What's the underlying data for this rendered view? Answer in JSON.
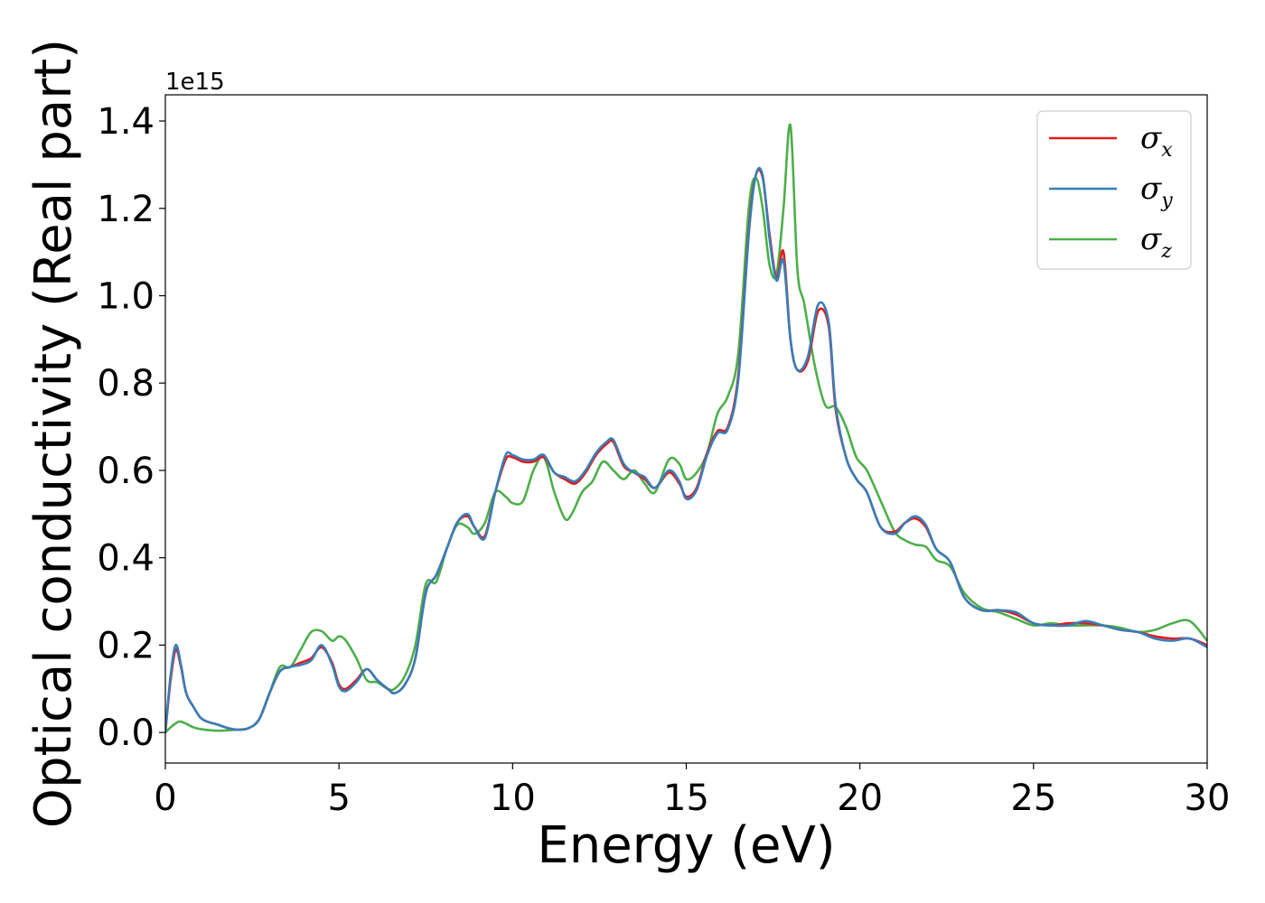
{
  "chart_data": {
    "type": "line",
    "title": "",
    "xlabel": "Energy (eV)",
    "ylabel": "Optical conductivity (Real part)",
    "y_offset_label": "1e15",
    "xlim": [
      0,
      30
    ],
    "ylim": [
      -0.07,
      1.46
    ],
    "x_ticks": [
      0,
      5,
      10,
      15,
      20,
      25,
      30
    ],
    "x_tick_labels": [
      "0",
      "5",
      "10",
      "15",
      "20",
      "25",
      "30"
    ],
    "y_ticks": [
      0.0,
      0.2,
      0.4,
      0.6,
      0.8,
      1.0,
      1.2,
      1.4
    ],
    "y_tick_labels": [
      "0.0",
      "0.2",
      "0.4",
      "0.6",
      "0.8",
      "1.0",
      "1.2",
      "1.4"
    ],
    "grid": false,
    "legend_position": "top-right",
    "series": [
      {
        "name": "σx",
        "symbol": "σ",
        "subscript": "x",
        "color": "#e41a1c",
        "x": [
          0,
          0.15,
          0.3,
          0.45,
          0.6,
          0.8,
          1.0,
          1.2,
          1.5,
          1.8,
          2.1,
          2.4,
          2.7,
          3.0,
          3.3,
          3.6,
          3.9,
          4.2,
          4.5,
          4.8,
          5.0,
          5.2,
          5.5,
          5.8,
          6.1,
          6.4,
          6.6,
          6.9,
          7.2,
          7.5,
          7.8,
          8.1,
          8.4,
          8.7,
          8.9,
          9.2,
          9.5,
          9.8,
          10.0,
          10.3,
          10.6,
          10.9,
          11.2,
          11.5,
          11.8,
          12.1,
          12.4,
          12.7,
          12.9,
          13.2,
          13.5,
          13.8,
          14.1,
          14.5,
          14.8,
          15.0,
          15.3,
          15.6,
          15.9,
          16.2,
          16.5,
          16.8,
          17.0,
          17.2,
          17.4,
          17.6,
          17.8,
          18.0,
          18.2,
          18.5,
          18.8,
          19.1,
          19.3,
          19.6,
          19.9,
          20.2,
          20.6,
          21.0,
          21.3,
          21.6,
          21.9,
          22.2,
          22.6,
          23.0,
          23.5,
          24.0,
          24.5,
          25.0,
          25.5,
          26.0,
          26.5,
          27.0,
          27.5,
          28.0,
          28.5,
          29.0,
          29.5,
          30.0
        ],
        "y": [
          0,
          0.12,
          0.19,
          0.15,
          0.09,
          0.06,
          0.035,
          0.025,
          0.018,
          0.01,
          0.006,
          0.01,
          0.03,
          0.09,
          0.14,
          0.15,
          0.16,
          0.17,
          0.195,
          0.16,
          0.11,
          0.1,
          0.12,
          0.145,
          0.12,
          0.1,
          0.09,
          0.11,
          0.17,
          0.32,
          0.36,
          0.42,
          0.48,
          0.495,
          0.47,
          0.45,
          0.55,
          0.625,
          0.63,
          0.62,
          0.62,
          0.63,
          0.595,
          0.58,
          0.57,
          0.595,
          0.635,
          0.66,
          0.665,
          0.61,
          0.595,
          0.58,
          0.56,
          0.595,
          0.57,
          0.54,
          0.56,
          0.64,
          0.69,
          0.7,
          0.82,
          1.15,
          1.275,
          1.27,
          1.14,
          1.04,
          1.1,
          0.9,
          0.83,
          0.85,
          0.965,
          0.93,
          0.74,
          0.63,
          0.58,
          0.55,
          0.47,
          0.46,
          0.48,
          0.49,
          0.47,
          0.42,
          0.39,
          0.31,
          0.28,
          0.28,
          0.27,
          0.25,
          0.245,
          0.25,
          0.25,
          0.245,
          0.235,
          0.23,
          0.22,
          0.215,
          0.215,
          0.2
        ]
      },
      {
        "name": "σy",
        "symbol": "σ",
        "subscript": "y",
        "color": "#377eb8",
        "x": [
          0,
          0.15,
          0.3,
          0.45,
          0.6,
          0.8,
          1.0,
          1.2,
          1.5,
          1.8,
          2.1,
          2.4,
          2.7,
          3.0,
          3.3,
          3.6,
          3.9,
          4.2,
          4.5,
          4.8,
          5.0,
          5.2,
          5.5,
          5.8,
          6.1,
          6.4,
          6.6,
          6.9,
          7.2,
          7.5,
          7.8,
          8.1,
          8.4,
          8.7,
          8.9,
          9.2,
          9.5,
          9.8,
          10.0,
          10.3,
          10.6,
          10.9,
          11.2,
          11.5,
          11.8,
          12.1,
          12.4,
          12.7,
          12.9,
          13.2,
          13.5,
          13.8,
          14.1,
          14.5,
          14.8,
          15.0,
          15.3,
          15.6,
          15.9,
          16.2,
          16.5,
          16.8,
          17.0,
          17.2,
          17.4,
          17.6,
          17.8,
          18.0,
          18.2,
          18.5,
          18.8,
          19.1,
          19.3,
          19.6,
          19.9,
          20.2,
          20.6,
          21.0,
          21.3,
          21.6,
          21.9,
          22.2,
          22.6,
          23.0,
          23.5,
          24.0,
          24.5,
          25.0,
          25.5,
          26.0,
          26.5,
          27.0,
          27.5,
          28.0,
          28.5,
          29.0,
          29.5,
          30.0
        ],
        "y": [
          0,
          0.13,
          0.2,
          0.155,
          0.09,
          0.06,
          0.035,
          0.025,
          0.018,
          0.01,
          0.006,
          0.01,
          0.03,
          0.09,
          0.14,
          0.15,
          0.155,
          0.165,
          0.2,
          0.155,
          0.105,
          0.095,
          0.115,
          0.145,
          0.12,
          0.1,
          0.09,
          0.11,
          0.17,
          0.32,
          0.36,
          0.42,
          0.48,
          0.5,
          0.47,
          0.445,
          0.55,
          0.635,
          0.635,
          0.625,
          0.625,
          0.635,
          0.595,
          0.585,
          0.575,
          0.6,
          0.64,
          0.665,
          0.67,
          0.615,
          0.595,
          0.585,
          0.56,
          0.6,
          0.575,
          0.535,
          0.555,
          0.635,
          0.685,
          0.695,
          0.81,
          1.14,
          1.275,
          1.275,
          1.13,
          1.035,
          1.08,
          0.9,
          0.83,
          0.86,
          0.98,
          0.94,
          0.75,
          0.63,
          0.58,
          0.55,
          0.47,
          0.455,
          0.48,
          0.495,
          0.475,
          0.42,
          0.39,
          0.31,
          0.28,
          0.28,
          0.275,
          0.25,
          0.245,
          0.245,
          0.255,
          0.245,
          0.235,
          0.23,
          0.215,
          0.21,
          0.215,
          0.195
        ]
      },
      {
        "name": "σz",
        "symbol": "σ",
        "subscript": "z",
        "color": "#4daf4a",
        "x": [
          0,
          0.2,
          0.4,
          0.6,
          0.8,
          1.0,
          1.3,
          1.6,
          2.0,
          2.4,
          2.7,
          3.0,
          3.3,
          3.6,
          3.9,
          4.2,
          4.5,
          4.8,
          5.0,
          5.2,
          5.5,
          5.8,
          6.1,
          6.4,
          6.6,
          6.9,
          7.2,
          7.5,
          7.8,
          8.1,
          8.4,
          8.7,
          8.9,
          9.2,
          9.5,
          9.8,
          10.0,
          10.3,
          10.6,
          10.9,
          11.2,
          11.5,
          11.7,
          12.0,
          12.3,
          12.6,
          12.9,
          13.2,
          13.5,
          13.8,
          14.1,
          14.5,
          14.8,
          15.0,
          15.3,
          15.6,
          15.9,
          16.2,
          16.5,
          16.8,
          17.0,
          17.2,
          17.4,
          17.6,
          17.8,
          18.0,
          18.2,
          18.4,
          18.7,
          19.0,
          19.3,
          19.6,
          19.9,
          20.2,
          20.6,
          21.0,
          21.3,
          21.6,
          21.9,
          22.2,
          22.6,
          23.0,
          23.5,
          24.0,
          24.5,
          25.0,
          25.5,
          26.0,
          26.5,
          27.0,
          27.5,
          28.0,
          28.5,
          29.0,
          29.5,
          30.0
        ],
        "y": [
          0,
          0.015,
          0.025,
          0.02,
          0.012,
          0.008,
          0.005,
          0.004,
          0.006,
          0.01,
          0.03,
          0.09,
          0.15,
          0.15,
          0.19,
          0.23,
          0.232,
          0.21,
          0.22,
          0.21,
          0.17,
          0.12,
          0.115,
          0.1,
          0.1,
          0.13,
          0.2,
          0.34,
          0.345,
          0.42,
          0.475,
          0.47,
          0.455,
          0.48,
          0.55,
          0.54,
          0.525,
          0.53,
          0.6,
          0.63,
          0.55,
          0.49,
          0.5,
          0.55,
          0.575,
          0.62,
          0.6,
          0.58,
          0.6,
          0.57,
          0.55,
          0.625,
          0.615,
          0.58,
          0.595,
          0.64,
          0.73,
          0.77,
          0.87,
          1.2,
          1.27,
          1.2,
          1.07,
          1.05,
          1.2,
          1.39,
          1.06,
          0.98,
          0.84,
          0.75,
          0.745,
          0.7,
          0.63,
          0.6,
          0.53,
          0.46,
          0.44,
          0.43,
          0.425,
          0.395,
          0.38,
          0.32,
          0.285,
          0.275,
          0.26,
          0.245,
          0.25,
          0.245,
          0.245,
          0.245,
          0.24,
          0.23,
          0.235,
          0.25,
          0.255,
          0.21
        ]
      }
    ]
  }
}
